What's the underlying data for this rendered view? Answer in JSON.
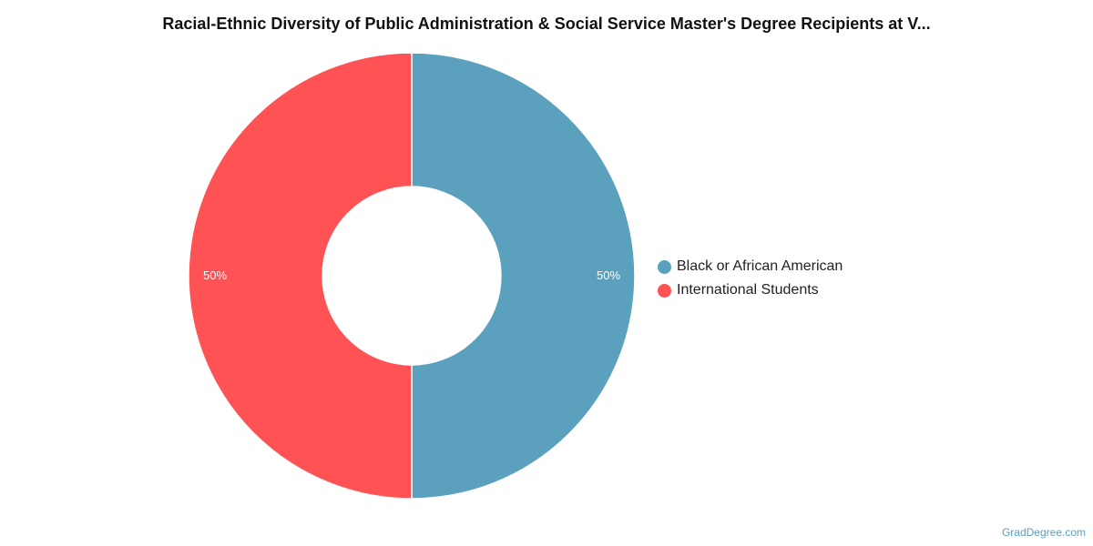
{
  "chart_data": {
    "type": "donut",
    "title": "Racial-Ethnic Diversity of Public Administration & Social Service Master's Degree Recipients at V...",
    "series": [
      {
        "name": "Black or African American",
        "value": 50,
        "label": "50%",
        "color": "#5ba1bd"
      },
      {
        "name": "International Students",
        "value": 50,
        "label": "50%",
        "color": "#ff5254"
      }
    ],
    "legend_position": "right"
  },
  "footer": {
    "source": "GradDegree.com"
  }
}
